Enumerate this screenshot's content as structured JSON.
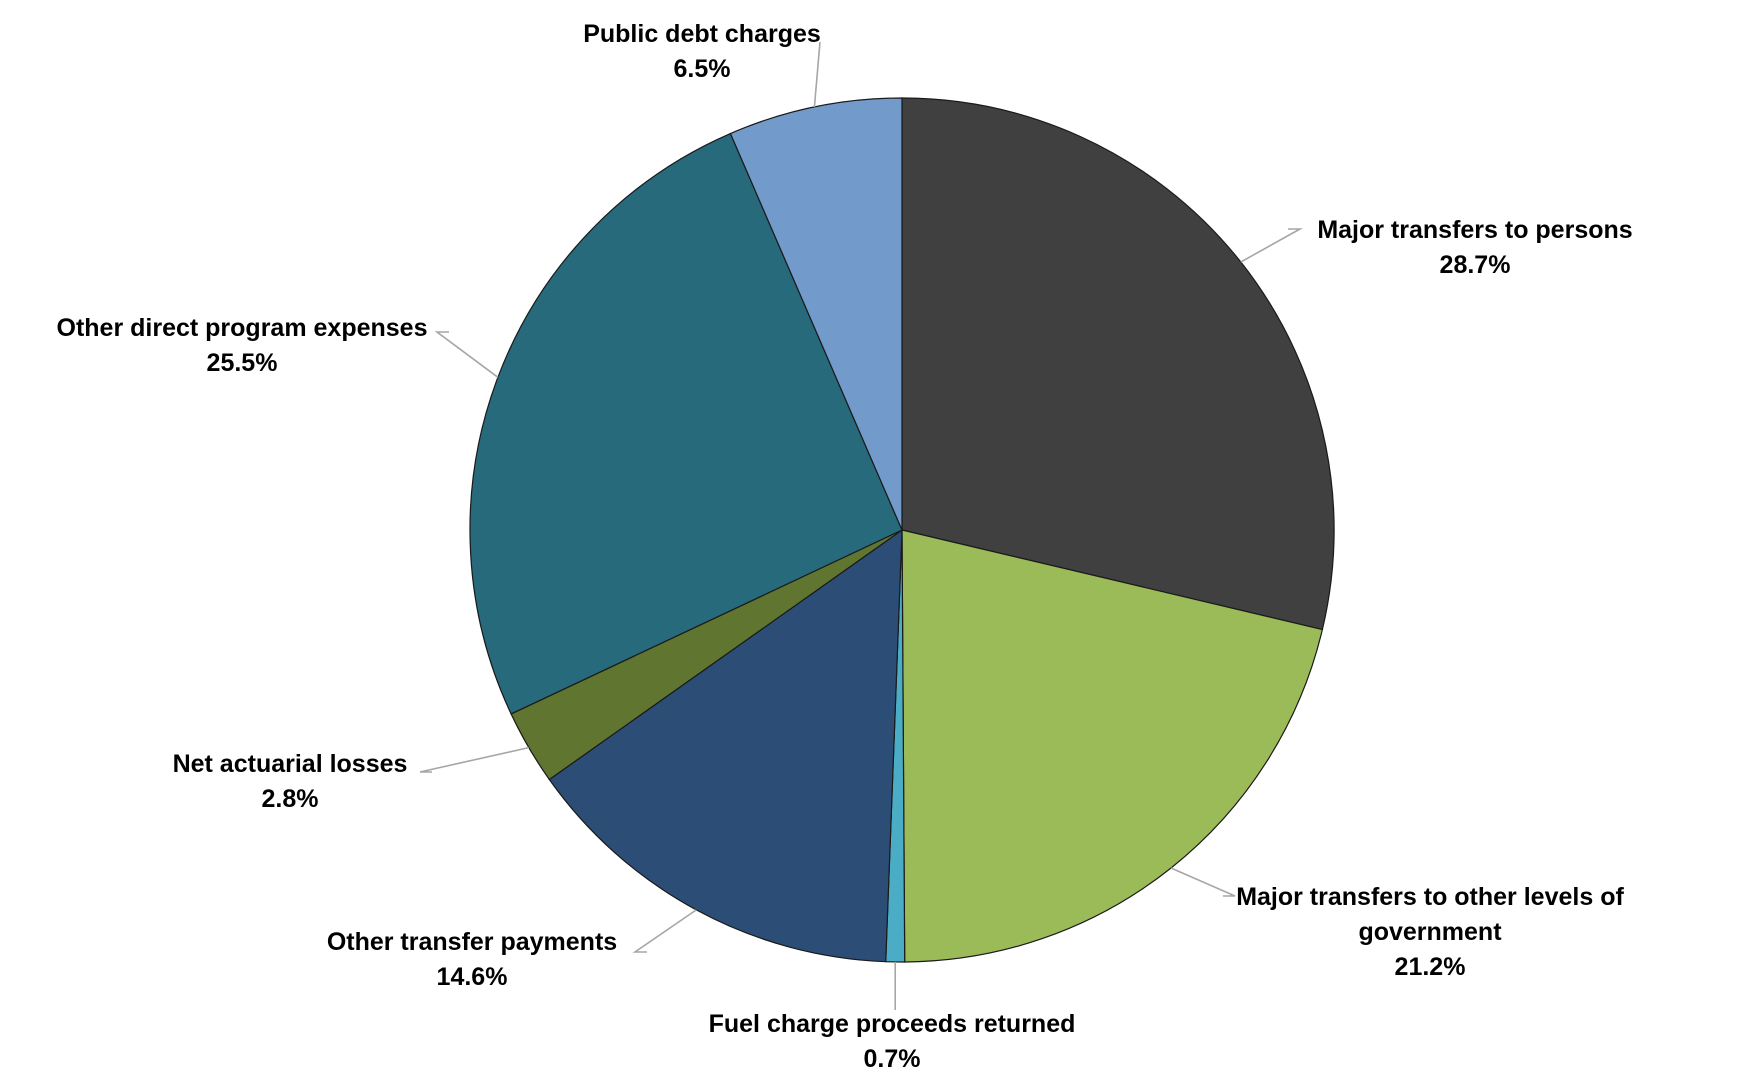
{
  "chart_data": {
    "type": "pie",
    "title": "",
    "slices": [
      {
        "label_lines": [
          "Major transfers to persons"
        ],
        "pct_label": "28.7%",
        "value": 28.7,
        "color": "#404040"
      },
      {
        "label_lines": [
          "Major transfers to other levels of",
          "government"
        ],
        "pct_label": "21.2%",
        "value": 21.2,
        "color": "#9bbb59"
      },
      {
        "label_lines": [
          "Fuel charge proceeds returned"
        ],
        "pct_label": "0.7%",
        "value": 0.7,
        "color": "#4bacc6"
      },
      {
        "label_lines": [
          "Other transfer payments"
        ],
        "pct_label": "14.6%",
        "value": 14.6,
        "color": "#2c4d75"
      },
      {
        "label_lines": [
          "Net actuarial losses"
        ],
        "pct_label": "2.8%",
        "value": 2.8,
        "color": "#5f7530"
      },
      {
        "label_lines": [
          "Other direct program expenses"
        ],
        "pct_label": "25.5%",
        "value": 25.5,
        "color": "#276a7c"
      },
      {
        "label_lines": [
          "Public debt charges"
        ],
        "pct_label": "6.5%",
        "value": 6.5,
        "color": "#729aca"
      }
    ],
    "start_angle": "12 o'clock",
    "direction": "clockwise",
    "legend": "none (data labels with leader lines)"
  }
}
